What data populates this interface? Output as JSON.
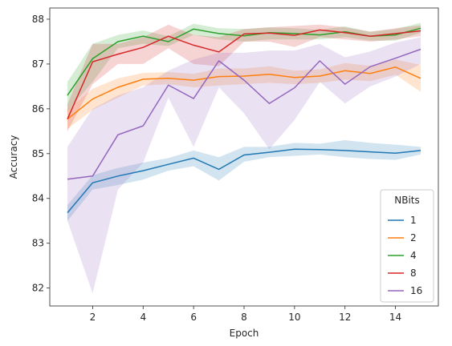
{
  "chart_data": {
    "type": "line",
    "xlabel": "Epoch",
    "ylabel": "Accuracy",
    "xlim": [
      0.3,
      15.7
    ],
    "ylim": [
      81.6,
      88.25
    ],
    "xticks": [
      2,
      4,
      6,
      8,
      10,
      12,
      14
    ],
    "yticks": [
      82,
      83,
      84,
      85,
      86,
      87,
      88
    ],
    "grid": false,
    "legend": {
      "title": "NBits",
      "placement": "lower-right"
    },
    "x": [
      1,
      2,
      3,
      4,
      5,
      6,
      7,
      8,
      9,
      10,
      11,
      12,
      13,
      14,
      15
    ],
    "series": [
      {
        "name": "1",
        "color": "#1f77b4",
        "values": [
          83.68,
          84.35,
          84.5,
          84.62,
          84.76,
          84.9,
          84.65,
          84.97,
          85.03,
          85.1,
          85.09,
          85.07,
          85.04,
          85.01,
          85.07
        ],
        "lower": [
          83.5,
          84.2,
          84.3,
          84.42,
          84.62,
          84.72,
          84.4,
          84.82,
          84.92,
          84.95,
          84.98,
          84.92,
          84.88,
          84.86,
          84.98
        ],
        "upper": [
          83.85,
          84.52,
          84.68,
          84.8,
          84.9,
          85.07,
          84.92,
          85.15,
          85.15,
          85.24,
          85.22,
          85.3,
          85.24,
          85.2,
          85.15
        ]
      },
      {
        "name": "2",
        "color": "#ff7f0e",
        "values": [
          85.77,
          86.22,
          86.48,
          86.66,
          86.68,
          86.64,
          86.72,
          86.73,
          86.77,
          86.7,
          86.73,
          86.85,
          86.79,
          86.93,
          86.68
        ],
        "lower": [
          85.55,
          85.98,
          86.25,
          86.52,
          86.55,
          86.48,
          86.52,
          86.55,
          86.58,
          86.55,
          86.58,
          86.65,
          86.62,
          86.76,
          86.38
        ],
        "upper": [
          85.98,
          86.45,
          86.68,
          86.8,
          86.82,
          86.78,
          86.9,
          86.9,
          86.95,
          86.85,
          86.88,
          87.02,
          86.96,
          87.1,
          86.98
        ]
      },
      {
        "name": "4",
        "color": "#2ca02c",
        "values": [
          86.3,
          87.12,
          87.5,
          87.62,
          87.5,
          87.78,
          87.68,
          87.63,
          87.7,
          87.68,
          87.65,
          87.72,
          87.62,
          87.65,
          87.8
        ],
        "lower": [
          85.95,
          86.6,
          87.35,
          87.45,
          87.4,
          87.65,
          87.55,
          87.5,
          87.55,
          87.55,
          87.55,
          87.6,
          87.52,
          87.52,
          87.7
        ],
        "upper": [
          86.6,
          87.45,
          87.65,
          87.75,
          87.62,
          87.9,
          87.8,
          87.78,
          87.82,
          87.8,
          87.76,
          87.84,
          87.72,
          87.78,
          87.92
        ]
      },
      {
        "name": "8",
        "color": "#d62728",
        "values": [
          85.77,
          87.05,
          87.22,
          87.37,
          87.62,
          87.42,
          87.27,
          87.67,
          87.69,
          87.64,
          87.76,
          87.7,
          87.62,
          87.68,
          87.74
        ],
        "lower": [
          85.5,
          86.55,
          87.0,
          87.0,
          87.35,
          87.0,
          86.95,
          87.5,
          87.5,
          87.38,
          87.6,
          87.55,
          87.5,
          87.55,
          87.62
        ],
        "upper": [
          86.1,
          87.45,
          87.45,
          87.6,
          87.88,
          87.65,
          87.6,
          87.78,
          87.82,
          87.85,
          87.88,
          87.82,
          87.72,
          87.8,
          87.86
        ]
      },
      {
        "name": "16",
        "color": "#9467bd",
        "values": [
          84.43,
          84.5,
          85.42,
          85.62,
          86.53,
          86.23,
          87.07,
          86.64,
          86.12,
          86.47,
          87.07,
          86.55,
          86.94,
          87.13,
          87.33
        ],
        "lower": [
          83.5,
          81.88,
          84.2,
          84.8,
          86.25,
          85.15,
          86.48,
          85.9,
          85.1,
          85.75,
          86.6,
          86.12,
          86.5,
          86.72,
          87.0
        ],
        "upper": [
          85.15,
          86.0,
          86.3,
          86.48,
          86.85,
          87.1,
          87.25,
          87.25,
          87.3,
          87.3,
          87.45,
          87.15,
          87.28,
          87.48,
          87.6
        ]
      }
    ]
  }
}
